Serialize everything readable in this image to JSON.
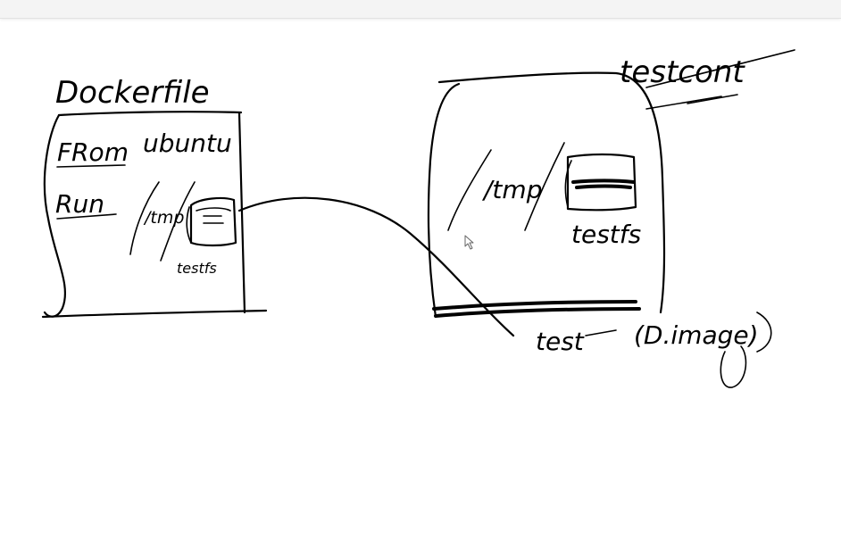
{
  "toolbar": {},
  "whiteboard": {
    "dockerfile": {
      "title": "Dockerfile",
      "from_keyword": "FRom",
      "from_value": "ubuntu",
      "run_keyword": "Run",
      "tmp_label": "/tmp",
      "file_label": "testfs"
    },
    "container": {
      "title": "testcont",
      "tmp_label": "/tmp",
      "file_label": "testfs",
      "image_name": "test",
      "image_note": "(D.image)"
    }
  }
}
